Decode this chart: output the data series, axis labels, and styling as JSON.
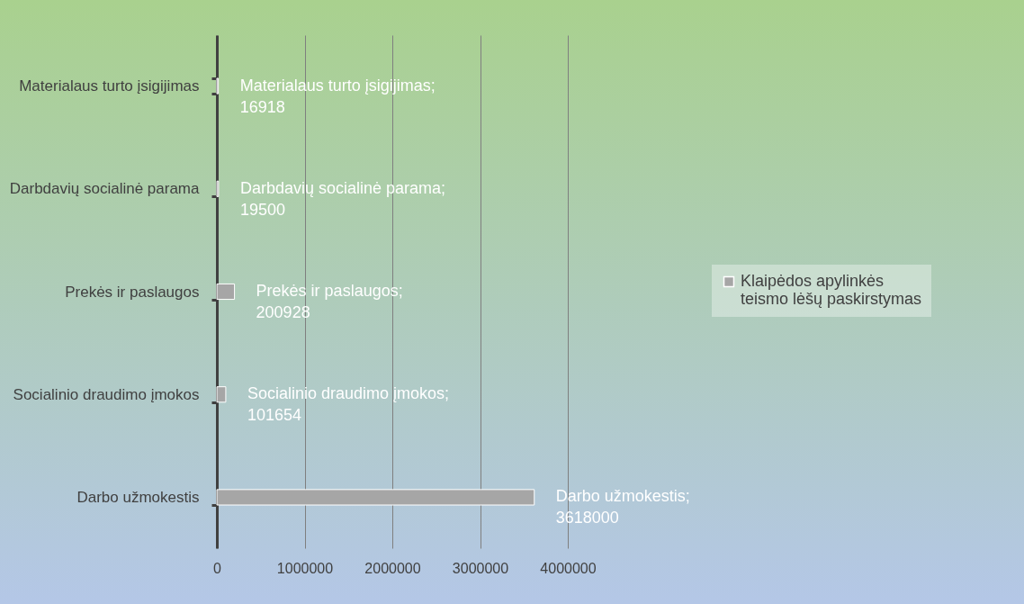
{
  "chart_data": {
    "type": "bar",
    "orientation": "horizontal",
    "categories": [
      "Materialaus turto įsigijimas",
      "Darbdavių socialinė parama",
      "Prekės ir paslaugos",
      "Socialinio draudimo įmokos",
      "Darbo užmokestis"
    ],
    "series": [
      {
        "name": "Klaipėdos apylinkės teismo lėšų paskirstymas",
        "color": "#a6a6a6",
        "values": [
          16918,
          19500,
          200928,
          101654,
          3618000
        ],
        "value_labels": [
          "Materialaus turto įsigijimas; 16918",
          "Darbdavių socialinė parama; 19500",
          "Prekės ir paslaugos; 200928",
          "Socialinio draudimo įmokos; 101654",
          "Darbo užmokestis; 3618000"
        ]
      }
    ],
    "xlim": [
      0,
      4000000
    ],
    "xticks": [
      0,
      1000000,
      2000000,
      3000000,
      4000000
    ],
    "grid": "x",
    "legend": "right"
  }
}
